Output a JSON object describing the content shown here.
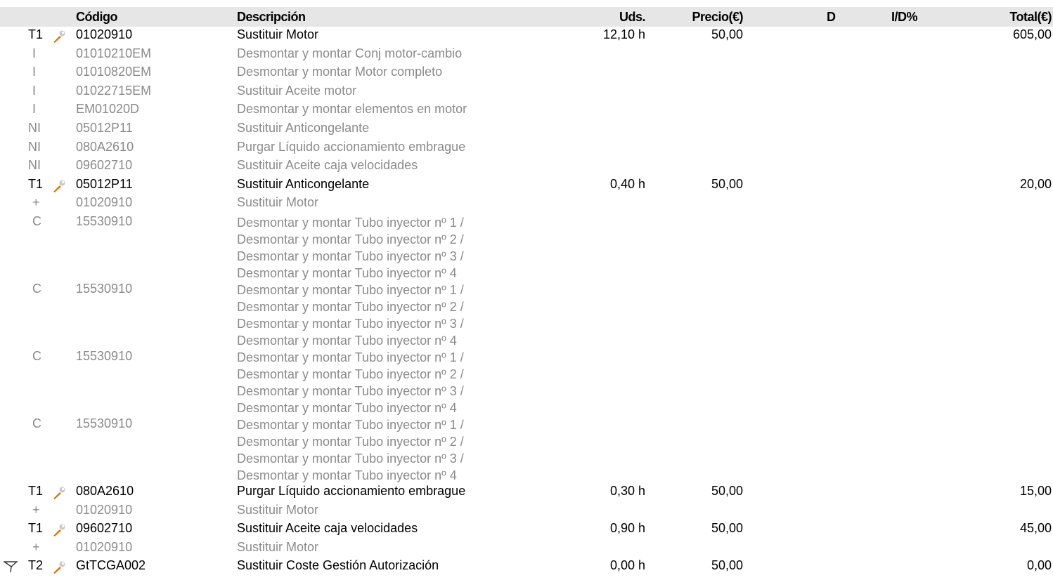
{
  "header": {
    "codigo": "Código",
    "descripcion": "Descripción",
    "uds": "Uds.",
    "precio": "Precio(€)",
    "d": "D",
    "id_pct": "I/D%",
    "total": "Total(€)"
  },
  "rows": [
    {
      "kind": "main",
      "type": "T1",
      "code": "01020910",
      "desc": "Sustituir Motor",
      "uds": "12,10 h",
      "price": "50,00",
      "total": "605,00"
    },
    {
      "kind": "sub",
      "type": "I",
      "code": "01010210EM",
      "desc": "Desmontar y montar Conj motor-cambio"
    },
    {
      "kind": "sub",
      "type": "I",
      "code": "01010820EM",
      "desc": "Desmontar y montar Motor completo"
    },
    {
      "kind": "sub",
      "type": "I",
      "code": "01022715EM",
      "desc": "Sustituir Aceite motor"
    },
    {
      "kind": "sub",
      "type": "I",
      "code": "EM01020D",
      "desc": "Desmontar y montar elementos en motor"
    },
    {
      "kind": "sub",
      "type": "NI",
      "code": "05012P11",
      "desc": "Sustituir Anticongelante"
    },
    {
      "kind": "sub",
      "type": "NI",
      "code": "080A2610",
      "desc": "Purgar Líquido accionamiento embrague"
    },
    {
      "kind": "sub",
      "type": "NI",
      "code": "09602710",
      "desc": "Sustituir Aceite caja velocidades"
    },
    {
      "kind": "main",
      "type": "T1",
      "code": "05012P11",
      "desc": "Sustituir Anticongelante",
      "uds": "0,40 h",
      "price": "50,00",
      "total": "20,00"
    },
    {
      "kind": "sub",
      "type": "+",
      "code": "01020910",
      "desc": "Sustituir Motor"
    },
    {
      "kind": "subm",
      "type": "C",
      "code": "15530910",
      "lines": [
        "Desmontar y montar Tubo inyector nº 1 /",
        "Desmontar y montar Tubo inyector nº 2 /",
        "Desmontar y montar Tubo inyector nº 3 /",
        "Desmontar y montar Tubo inyector nº 4"
      ]
    },
    {
      "kind": "subm",
      "type": "C",
      "code": "15530910",
      "lines": [
        "Desmontar y montar Tubo inyector nº 1 /",
        "Desmontar y montar Tubo inyector nº 2 /",
        "Desmontar y montar Tubo inyector nº 3 /",
        "Desmontar y montar Tubo inyector nº 4"
      ]
    },
    {
      "kind": "subm",
      "type": "C",
      "code": "15530910",
      "lines": [
        "Desmontar y montar Tubo inyector nº 1 /",
        "Desmontar y montar Tubo inyector nº 2 /",
        "Desmontar y montar Tubo inyector nº 3 /",
        "Desmontar y montar Tubo inyector nº 4"
      ]
    },
    {
      "kind": "subm",
      "type": "C",
      "code": "15530910",
      "lines": [
        "Desmontar y montar Tubo inyector nº 1 /",
        "Desmontar y montar Tubo inyector nº 2 /",
        "Desmontar y montar Tubo inyector nº 3 /",
        "Desmontar y montar Tubo inyector nº 4"
      ]
    },
    {
      "kind": "main",
      "type": "T1",
      "code": "080A2610",
      "desc": "Purgar Líquido accionamiento embrague",
      "uds": "0,30 h",
      "price": "50,00",
      "total": "15,00"
    },
    {
      "kind": "sub",
      "type": "+",
      "code": "01020910",
      "desc": "Sustituir Motor"
    },
    {
      "kind": "main",
      "type": "T1",
      "code": "09602710",
      "desc": "Sustituir Aceite caja velocidades",
      "uds": "0,90 h",
      "price": "50,00",
      "total": "45,00"
    },
    {
      "kind": "sub",
      "type": "+",
      "code": "01020910",
      "desc": "Sustituir Motor"
    },
    {
      "kind": "main",
      "type": "T2",
      "code": "GtTCGA002",
      "desc": "Sustituir Coste Gestión Autorización",
      "uds": "0,00 h",
      "price": "50,00",
      "total": "0,00",
      "flag": true
    }
  ],
  "colors": {
    "header_bg": "#e6e6e6",
    "sub_text": "#8a8a8a",
    "wrench_orange": "#f08a1c"
  },
  "icons": {
    "tool": "wrench-icon",
    "flag": "filter-flag-icon"
  }
}
